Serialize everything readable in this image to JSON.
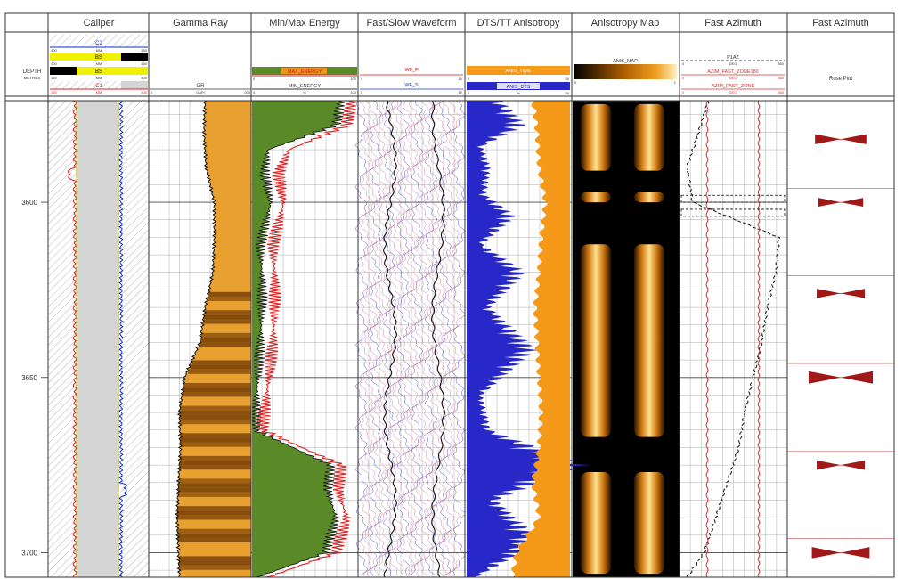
{
  "chart_data": {
    "type": "well-log",
    "depth_header": "DEPTH",
    "depth_unit": "METRES",
    "depth_range": [
      3571,
      3707
    ],
    "depth_ticks": [
      3600,
      3650,
      3700
    ],
    "tracks": [
      {
        "title": "Caliper",
        "curves": [
          {
            "name": "C2",
            "color": "#1030d0",
            "scale": [
              400,
              150
            ]
          },
          {
            "name": "BS",
            "color": "#f0f000",
            "scale": [
              400,
              150
            ]
          },
          {
            "name": "BS",
            "color": "#f0f000",
            "scale": [
              150,
              400
            ]
          },
          {
            "name": "C1",
            "color": "#e02020",
            "scale": [
              150,
              400
            ]
          }
        ]
      },
      {
        "title": "Gamma Ray",
        "curves": [
          {
            "name": "GR",
            "unit": "GAPI",
            "scale": [
              0,
              200
            ]
          }
        ]
      },
      {
        "title": "Min/Max Energy",
        "curves": [
          {
            "name": "MAX_ENERGY",
            "scale": [
              0,
              100
            ]
          },
          {
            "name": "MIN_ENERGY",
            "unit": "%",
            "scale": [
              0,
              100
            ]
          }
        ]
      },
      {
        "title": "Fast/Slow Waveform",
        "curves": [
          {
            "name": "WF_F",
            "scale": [
              0,
              10
            ]
          },
          {
            "name": "WF_S",
            "scale": [
              0,
              10
            ]
          }
        ]
      },
      {
        "title": "DTS/TT Anisotropy",
        "curves": [
          {
            "name": "ANIS_TIME",
            "scale": [
              0,
              50
            ]
          },
          {
            "name": "ANIS_DTS",
            "unit": "%",
            "scale": [
              0,
              50
            ]
          }
        ]
      },
      {
        "title": "Anisotropy Map",
        "curves": [
          {
            "name": "ANIS_MAP",
            "scale": [
              0,
              1
            ]
          }
        ]
      },
      {
        "title": "Fast Azimuth",
        "curves": [
          {
            "name": "P1AZ",
            "scale": [
              0,
              360
            ]
          },
          {
            "name": "AZIM_FAST_ZONE180",
            "scale": [
              0,
              360
            ]
          },
          {
            "name": "AZIM_FAST_ZONE",
            "scale": [
              0,
              360
            ]
          }
        ]
      },
      {
        "title": "Fast Azimuth",
        "curves": [
          {
            "name": "Rose Plot"
          }
        ]
      }
    ],
    "gamma_ray": {
      "depth": [
        3571,
        3580,
        3590,
        3600,
        3610,
        3620,
        3630,
        3640,
        3650,
        3660,
        3670,
        3680,
        3690,
        3700,
        3707
      ],
      "values": [
        110,
        108,
        112,
        128,
        128,
        125,
        110,
        100,
        70,
        60,
        62,
        58,
        55,
        58,
        60
      ]
    },
    "max_energy": {
      "depth": [
        3571,
        3578,
        3585,
        3592,
        3600,
        3612,
        3625,
        3640,
        3652,
        3665,
        3675,
        3682,
        3690,
        3700,
        3707
      ],
      "values": [
        95,
        90,
        35,
        25,
        30,
        20,
        22,
        20,
        15,
        10,
        85,
        82,
        90,
        80,
        15
      ]
    },
    "min_energy": {
      "depth": [
        3571,
        3578,
        3585,
        3592,
        3600,
        3612,
        3625,
        3640,
        3652,
        3665,
        3675,
        3682,
        3690,
        3700,
        3707
      ],
      "values": [
        85,
        80,
        15,
        12,
        18,
        8,
        10,
        8,
        5,
        3,
        75,
        72,
        80,
        70,
        5
      ]
    },
    "anis_dts": {
      "depth": [
        3571,
        3578,
        3584,
        3590,
        3598,
        3604,
        3612,
        3620,
        3630,
        3642,
        3655,
        3665,
        3675,
        3685,
        3695,
        3700,
        3707
      ],
      "values": [
        18,
        30,
        8,
        12,
        10,
        25,
        8,
        30,
        12,
        35,
        8,
        12,
        60,
        15,
        35,
        28,
        5
      ]
    },
    "anis_time": {
      "depth": [
        3571,
        3580,
        3590,
        3600,
        3610,
        3620,
        3630,
        3640,
        3650,
        3660,
        3670,
        3680,
        3690,
        3700,
        3707
      ],
      "values": [
        18,
        16,
        15,
        12,
        14,
        15,
        17,
        16,
        15,
        14,
        15,
        18,
        15,
        26,
        28
      ]
    },
    "anis_map_bright_intervals": [
      [
        3572,
        3591
      ],
      [
        3597,
        3600
      ],
      [
        3612,
        3667
      ],
      [
        3677,
        3706
      ]
    ],
    "p1az": {
      "depth": [
        3571,
        3580,
        3590,
        3600,
        3610,
        3620,
        3630,
        3640,
        3650,
        3660,
        3670,
        3680,
        3690,
        3700,
        3707
      ],
      "values": [
        95,
        60,
        20,
        40,
        340,
        330,
        300,
        280,
        250,
        220,
        200,
        160,
        120,
        80,
        20
      ]
    },
    "azim_fast_zone180": {
      "depth": [
        3571,
        3600,
        3660,
        3707
      ],
      "values": [
        270,
        270,
        270,
        270
      ]
    },
    "azim_fast_zone": {
      "depth": [
        3571,
        3600,
        3660,
        3707
      ],
      "values": [
        90,
        90,
        90,
        90
      ]
    },
    "rose_plots": [
      {
        "depth": 3582,
        "azimuth": 90,
        "size": 0.8
      },
      {
        "depth": 3600,
        "azimuth": 90,
        "size": 0.7
      },
      {
        "depth": 3626,
        "azimuth": 90,
        "size": 0.75
      },
      {
        "depth": 3650,
        "azimuth": 90,
        "size": 1.0
      },
      {
        "depth": 3675,
        "azimuth": 90,
        "size": 0.75
      },
      {
        "depth": 3700,
        "azimuth": 90,
        "size": 0.9
      }
    ]
  },
  "header_scales": {
    "c2": [
      "400",
      "MM",
      "150"
    ],
    "bs1": [
      "400",
      "MM",
      "150"
    ],
    "bs2": [
      "150",
      "MM",
      "400"
    ],
    "c1": [
      "150",
      "MM",
      "400"
    ],
    "gr": [
      "0",
      "GAPI",
      "200"
    ],
    "maxe": [
      "0",
      "",
      "100"
    ],
    "mine": [
      "0",
      "%",
      "100"
    ],
    "wff": [
      "0",
      "",
      "10"
    ],
    "wfs": [
      "0",
      "",
      "10"
    ],
    "anist": [
      "0",
      "",
      "50"
    ],
    "anisd": [
      "0",
      "%",
      "50"
    ],
    "anism": [
      "0",
      "",
      "1"
    ],
    "p1az": [
      "0",
      "DEG",
      "360"
    ],
    "azf180": [
      "0",
      "DEG",
      "360"
    ],
    "azf": [
      "0",
      "DEG",
      "360"
    ]
  },
  "colors": {
    "caliper_fill": "#d4d4d4",
    "gr_fill_dark": "#7a4208",
    "gr_fill_light": "#e8a030",
    "energy_fill": "#5a8a28",
    "energy_curve": "#e02020",
    "dts_fill": "#2828c8",
    "anis_time_fill": "#f59a18",
    "azimuth_curve": "#d03030",
    "rose": "#a01818"
  }
}
